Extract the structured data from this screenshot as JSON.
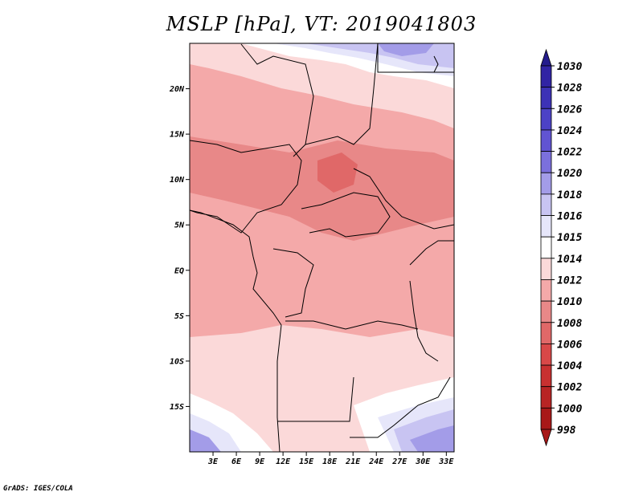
{
  "title": "MSLP [hPa], VT: 2019041803",
  "credit": "GrADS: IGES/COLA",
  "map": {
    "lat_labels": [
      "20N",
      "15N",
      "10N",
      "5N",
      "EQ",
      "5S",
      "10S",
      "15S"
    ],
    "lat_values": [
      20,
      15,
      10,
      5,
      0,
      -5,
      -10,
      -15
    ],
    "lon_labels": [
      "3E",
      "6E",
      "9E",
      "12E",
      "15E",
      "18E",
      "21E",
      "24E",
      "27E",
      "30E",
      "33E"
    ],
    "lon_values": [
      3,
      6,
      9,
      12,
      15,
      18,
      21,
      24,
      27,
      30,
      33
    ],
    "lon_range": [
      0,
      34
    ],
    "lat_range": [
      -20,
      25
    ]
  },
  "colorbar": {
    "labels": [
      "1030",
      "1028",
      "1026",
      "1024",
      "1022",
      "1020",
      "1018",
      "1016",
      "1015",
      "1014",
      "1012",
      "1010",
      "1008",
      "1006",
      "1004",
      "1002",
      "1000",
      "998"
    ],
    "colors": {
      "c1030": "#241c8c",
      "c1028": "#3124a4",
      "c1026": "#3d32b6",
      "c1024": "#4c42c6",
      "c1022": "#6154d2",
      "c1020": "#7b70dc",
      "c1018": "#a39ce8",
      "c1016": "#c8c4f2",
      "c1015": "#e6e6fa",
      "c1014": "#ffffff",
      "c1012": "#fbd9d9",
      "c1010": "#f4a9a9",
      "c1008": "#e88888",
      "c1006": "#e06868",
      "c1004": "#d84848",
      "c1002": "#c83030",
      "c1000": "#b82424",
      "c998": "#a81818"
    }
  }
}
